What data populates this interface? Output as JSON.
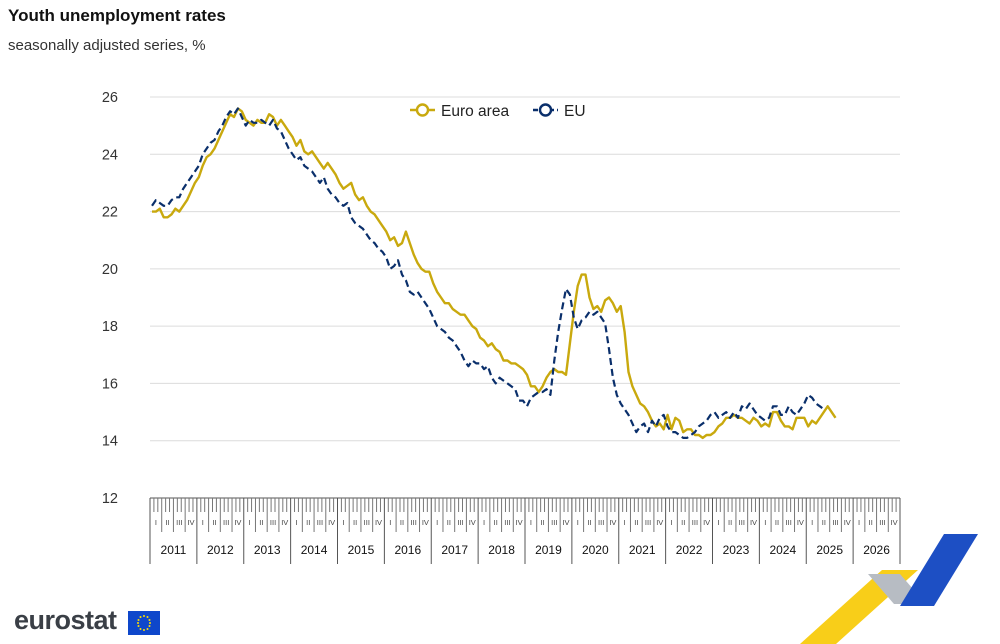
{
  "title": "Youth unemployment rates",
  "subtitle": "seasonally adjusted series, %",
  "brand": {
    "name": "eurostat"
  },
  "chart_data": {
    "type": "line",
    "title": "Youth unemployment rates",
    "subtitle": "seasonally adjusted series, %",
    "x_frequency": "monthly",
    "x_start": "2011-01",
    "x_end": "2026-12",
    "years": [
      "2011",
      "2012",
      "2013",
      "2014",
      "2015",
      "2016",
      "2017",
      "2018",
      "2019",
      "2020",
      "2021",
      "2022",
      "2023",
      "2024",
      "2025",
      "2026"
    ],
    "quarters": [
      "I",
      "II",
      "III",
      "IV"
    ],
    "ylim": [
      12,
      26
    ],
    "yticks": [
      12,
      14,
      16,
      18,
      20,
      22,
      24,
      26
    ],
    "grid": true,
    "legend_position": "top-center",
    "series": [
      {
        "name": "Euro area",
        "color": "#c9a90e",
        "style": "solid",
        "start": "2011-01",
        "values": [
          22.0,
          22.0,
          22.1,
          21.8,
          21.8,
          21.9,
          22.1,
          22.0,
          22.2,
          22.4,
          22.7,
          23.0,
          23.2,
          23.6,
          23.9,
          24.0,
          24.2,
          24.5,
          24.8,
          25.1,
          25.4,
          25.3,
          25.6,
          25.5,
          25.2,
          25.1,
          25.0,
          25.2,
          25.1,
          25.1,
          25.4,
          25.3,
          25.0,
          25.2,
          25.0,
          24.8,
          24.6,
          24.3,
          24.5,
          24.1,
          24.0,
          24.1,
          23.9,
          23.7,
          23.5,
          23.7,
          23.5,
          23.3,
          23.0,
          22.8,
          22.9,
          23.0,
          22.6,
          22.4,
          22.5,
          22.2,
          22.0,
          21.9,
          21.7,
          21.5,
          21.3,
          21.0,
          21.1,
          20.8,
          20.9,
          21.3,
          20.9,
          20.5,
          20.2,
          20.0,
          19.9,
          19.9,
          19.5,
          19.2,
          19.0,
          18.8,
          18.8,
          18.6,
          18.5,
          18.4,
          18.4,
          18.2,
          18.0,
          17.9,
          17.6,
          17.5,
          17.3,
          17.4,
          17.2,
          17.1,
          16.8,
          16.8,
          16.7,
          16.7,
          16.6,
          16.5,
          16.3,
          15.9,
          15.9,
          15.7,
          15.9,
          16.2,
          16.4,
          16.5,
          16.4,
          16.4,
          16.3,
          17.4,
          18.5,
          19.4,
          19.8,
          19.8,
          19.0,
          18.6,
          18.7,
          18.5,
          18.9,
          19.0,
          18.8,
          18.5,
          18.7,
          17.8,
          16.4,
          15.9,
          15.6,
          15.3,
          15.2,
          15.0,
          14.7,
          14.5,
          14.6,
          14.4,
          14.9,
          14.4,
          14.8,
          14.7,
          14.3,
          14.4,
          14.4,
          14.2,
          14.2,
          14.1,
          14.2,
          14.2,
          14.3,
          14.5,
          14.6,
          14.8,
          14.8,
          14.9,
          14.8,
          14.8,
          14.7,
          14.6,
          14.8,
          14.7,
          14.5,
          14.6,
          14.5,
          15.0,
          15.0,
          14.7,
          14.5,
          14.5,
          14.4,
          14.8,
          14.8,
          14.8,
          14.5,
          14.7,
          14.6,
          14.8,
          15.0,
          15.2,
          15.0,
          14.8
        ]
      },
      {
        "name": "EU",
        "color": "#0a2f6b",
        "style": "dashed",
        "start": "2011-01",
        "values": [
          22.2,
          22.4,
          22.3,
          22.2,
          22.2,
          22.4,
          22.5,
          22.5,
          22.8,
          23.0,
          23.2,
          23.4,
          23.6,
          24.0,
          24.2,
          24.4,
          24.5,
          24.8,
          25.0,
          25.3,
          25.5,
          25.4,
          25.6,
          25.3,
          25.0,
          25.2,
          25.1,
          25.1,
          25.2,
          25.1,
          25.0,
          25.2,
          24.9,
          24.8,
          24.5,
          24.2,
          24.0,
          23.8,
          23.9,
          23.6,
          23.5,
          23.4,
          23.2,
          23.0,
          23.2,
          22.8,
          22.6,
          22.5,
          22.3,
          22.2,
          22.3,
          21.8,
          21.6,
          21.5,
          21.4,
          21.2,
          21.0,
          20.9,
          20.7,
          20.6,
          20.4,
          20.0,
          20.1,
          20.3,
          19.8,
          19.6,
          19.2,
          19.1,
          19.2,
          19.0,
          18.8,
          18.6,
          18.3,
          18.0,
          17.9,
          17.8,
          17.6,
          17.5,
          17.3,
          17.1,
          16.8,
          16.6,
          16.8,
          16.7,
          16.7,
          16.5,
          16.6,
          16.2,
          16.0,
          16.2,
          16.1,
          16.0,
          15.9,
          15.8,
          15.4,
          15.4,
          15.2,
          15.5,
          15.6,
          15.7,
          15.7,
          15.8,
          15.6,
          16.8,
          17.8,
          18.6,
          19.3,
          19.1,
          18.3,
          17.9,
          18.2,
          18.3,
          18.5,
          18.4,
          18.5,
          18.3,
          18.1,
          17.2,
          16.2,
          15.6,
          15.3,
          15.1,
          14.9,
          14.6,
          14.3,
          14.5,
          14.6,
          14.3,
          14.7,
          14.5,
          14.8,
          14.9,
          14.5,
          14.3,
          14.3,
          14.2,
          14.1,
          14.1,
          14.2,
          14.3,
          14.5,
          14.6,
          14.7,
          14.9,
          15.0,
          14.8,
          14.9,
          15.0,
          14.8,
          15.0,
          14.8,
          15.2,
          15.1,
          15.3,
          15.1,
          14.9,
          14.8,
          14.7,
          14.8,
          15.2,
          15.2,
          14.9,
          14.9,
          15.2,
          15.0,
          14.9,
          15.1,
          15.3,
          15.6,
          15.5,
          15.3,
          15.2,
          15.1
        ]
      }
    ]
  }
}
